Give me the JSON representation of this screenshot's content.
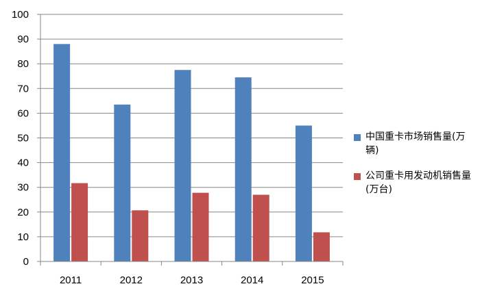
{
  "chart_data": {
    "type": "bar",
    "title": "",
    "xlabel": "",
    "ylabel": "",
    "categories": [
      "2011",
      "2012",
      "2013",
      "2014",
      "2015"
    ],
    "series": [
      {
        "name": "中国重卡市场销售量(万辆)",
        "values": [
          88,
          63.5,
          77.5,
          74.5,
          55
        ],
        "color": "#4F81BD"
      },
      {
        "name": "公司重卡用发动机销售量(万台)",
        "values": [
          31.7,
          20.7,
          27.8,
          27,
          11.8
        ],
        "color": "#C0504D"
      }
    ],
    "ylim": [
      0,
      100
    ],
    "yticks": [
      "0",
      "10",
      "20",
      "30",
      "40",
      "50",
      "60",
      "70",
      "80",
      "90",
      "100"
    ],
    "grid": true,
    "legend_position": "right"
  }
}
